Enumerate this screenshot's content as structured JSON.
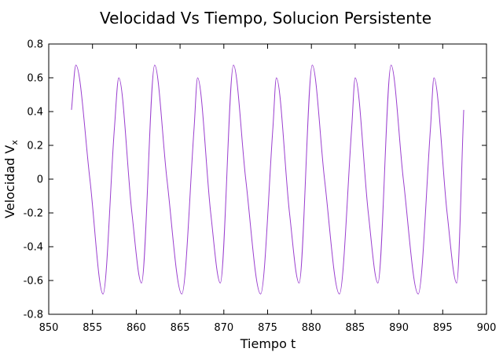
{
  "chart_data": {
    "type": "line",
    "title": "Velocidad Vs Tiempo, Solucion Persistente",
    "xlabel": "Tiempo t",
    "ylabel": "Velocidad V",
    "ylabel_subscript": "x",
    "xlim": [
      850,
      900
    ],
    "ylim": [
      -0.8,
      0.8
    ],
    "x_ticks": [
      850,
      855,
      860,
      865,
      870,
      875,
      880,
      885,
      890,
      895,
      900
    ],
    "x_tick_labels": [
      "850",
      "855",
      "860",
      "865",
      "870",
      "875",
      "880",
      "885",
      "890",
      "895",
      "900"
    ],
    "y_ticks": [
      -0.8,
      -0.6,
      -0.4,
      -0.2,
      0,
      0.2,
      0.4,
      0.6,
      0.8
    ],
    "y_tick_labels": [
      "-0.8",
      "-0.6",
      "-0.4",
      "-0.2",
      "0",
      "0.2",
      "0.4",
      "0.6",
      "0.8"
    ],
    "grid": false,
    "series": [
      {
        "color": "#9a3ecf",
        "x": [
          852.6,
          853.1,
          854.7,
          856.2,
          857.5,
          858.0,
          859.5,
          860.6,
          862.1,
          863.5,
          865.2,
          866.6,
          867.0,
          868.5,
          869.6,
          871.1,
          872.5,
          874.2,
          875.6,
          876.0,
          877.5,
          878.6,
          880.1,
          881.5,
          883.2,
          884.6,
          885.0,
          886.5,
          887.6,
          889.1,
          890.5,
          892.2,
          893.6,
          894.0,
          895.5,
          896.6,
          897.4
        ],
        "y": [
          0.41,
          0.675,
          0.0,
          -0.68,
          0.3,
          0.6,
          -0.2,
          -0.615,
          0.675,
          0.0,
          -0.68,
          0.3,
          0.6,
          -0.2,
          -0.615,
          0.675,
          0.0,
          -0.68,
          0.3,
          0.6,
          -0.2,
          -0.615,
          0.675,
          0.0,
          -0.68,
          0.3,
          0.6,
          -0.2,
          -0.615,
          0.675,
          0.0,
          -0.68,
          0.3,
          0.6,
          -0.2,
          -0.615,
          0.41
        ]
      }
    ]
  }
}
